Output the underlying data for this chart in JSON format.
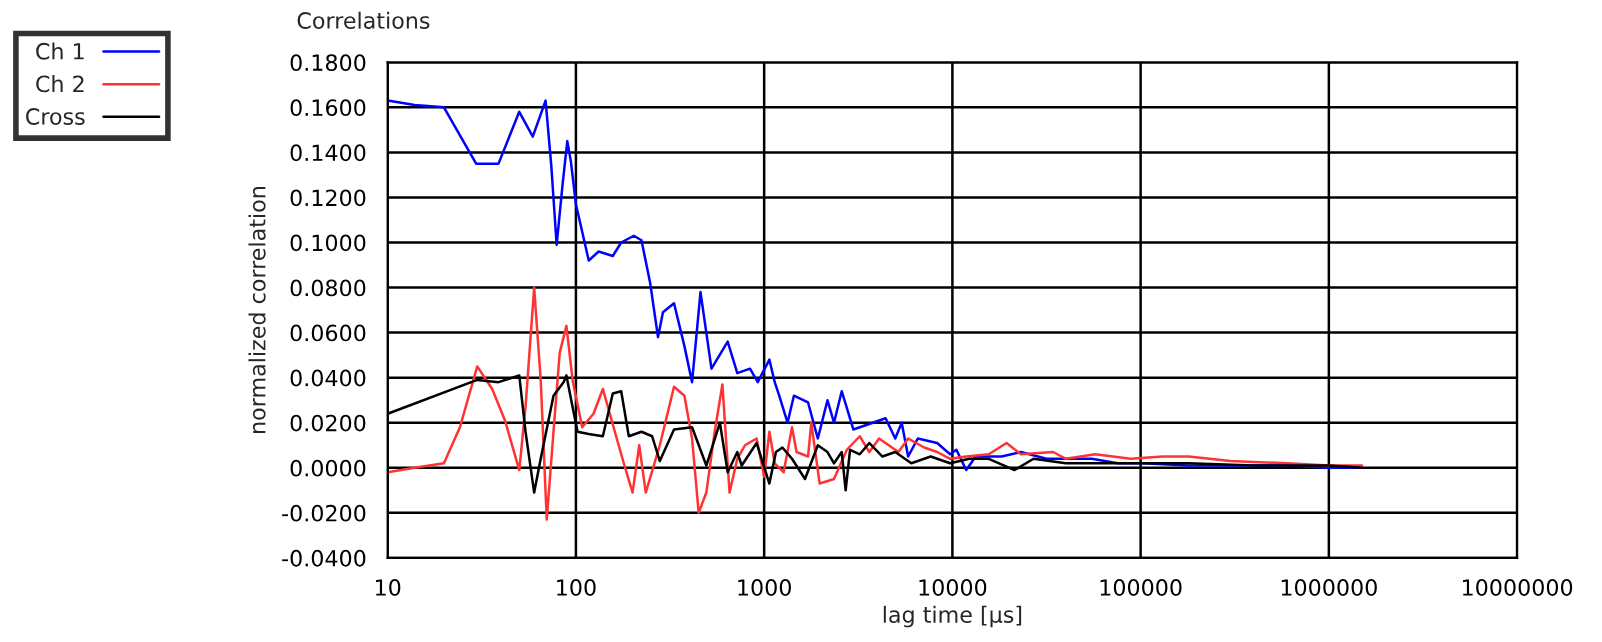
{
  "chart_data": {
    "type": "line",
    "title": "Correlations",
    "xlabel": "lag time [µs]",
    "ylabel": "normalized correlation",
    "log": "x",
    "grid": true,
    "legend": "top left",
    "marker": "none",
    "line_style": "solid",
    "xlim": [
      10,
      10000000
    ],
    "xticks": [
      10,
      100,
      1000,
      10000,
      100000,
      1000000,
      10000000
    ],
    "ylim": [
      -0.04,
      0.18
    ],
    "yticks": [
      {
        "value": -0.04,
        "label": "-0.0400"
      },
      {
        "value": -0.02,
        "label": "-0.0200"
      },
      {
        "value": 0,
        "label": "0.0000"
      },
      {
        "value": 0.02,
        "label": "0.0200"
      },
      {
        "value": 0.04,
        "label": "0.0400"
      },
      {
        "value": 0.06,
        "label": "0.0600"
      },
      {
        "value": 0.08,
        "label": "0.0800"
      },
      {
        "value": 0.1,
        "label": "0.1000"
      },
      {
        "value": 0.12,
        "label": "0.1200"
      },
      {
        "value": 0.14,
        "label": "0.1400"
      },
      {
        "value": 0.16,
        "label": "0.1600"
      },
      {
        "value": 0.18,
        "label": "0.1800"
      }
    ],
    "series": [
      {
        "name": "Ch 1",
        "color": "#0000ff",
        "x": [
          10,
          13.9,
          19.9,
          29.5,
          38.8,
          50,
          59,
          69,
          74,
          79,
          85,
          90,
          94,
          100,
          117,
          132,
          157,
          174,
          203,
          223,
          248,
          273,
          290,
          332,
          377,
          414,
          459,
          525,
          640,
          720,
          841,
          925,
          1066,
          1138,
          1202,
          1331,
          1439,
          1711,
          1928,
          2170,
          2350,
          2583,
          2977,
          3773,
          4418,
          4970,
          5380,
          5820,
          6550,
          8300,
          9720,
          10500,
          11840,
          13300,
          18250,
          23100,
          31600,
          40000,
          55000,
          75500,
          103000,
          178000,
          300000,
          600000,
          1000000,
          1500000
        ],
        "values": [
          0.163,
          0.161,
          0.16,
          0.135,
          0.135,
          0.158,
          0.147,
          0.163,
          0.134,
          0.099,
          0.126,
          0.145,
          0.136,
          0.117,
          0.092,
          0.096,
          0.094,
          0.1,
          0.103,
          0.101,
          0.082,
          0.058,
          0.069,
          0.073,
          0.054,
          0.038,
          0.078,
          0.044,
          0.056,
          0.042,
          0.044,
          0.038,
          0.048,
          0.038,
          0.032,
          0.02,
          0.032,
          0.029,
          0.013,
          0.03,
          0.02,
          0.034,
          0.017,
          0.02,
          0.022,
          0.013,
          0.02,
          0.005,
          0.013,
          0.011,
          0.006,
          0.008,
          -0.001,
          0.005,
          0.005,
          0.007,
          0.004,
          0.004,
          0.004,
          0.002,
          0.002,
          0.001,
          0.001,
          0.001,
          0.0,
          0.0
        ]
      },
      {
        "name": "Ch 2",
        "color": "#ff3333",
        "x": [
          10,
          13.9,
          19.9,
          24.2,
          29.9,
          35.9,
          42,
          50,
          54,
          60,
          65,
          70,
          76,
          82,
          89,
          96,
          108,
          124,
          139,
          161,
          181,
          200,
          217,
          235,
          279,
          332,
          377,
          414,
          449,
          493,
          546,
          600,
          655,
          720,
          791,
          912,
          1000,
          1066,
          1138,
          1270,
          1406,
          1486,
          1711,
          1780,
          1972,
          2350,
          2750,
          3220,
          3620,
          4080,
          5170,
          5820,
          7080,
          8300,
          9720,
          11840,
          15600,
          19400,
          23100,
          34300,
          40000,
          57300,
          88500,
          131000,
          180000,
          300000,
          600000,
          1000000,
          1500000
        ],
        "values": [
          -0.002,
          0.0,
          0.002,
          0.018,
          0.045,
          0.035,
          0.021,
          -0.001,
          0.027,
          0.08,
          0.039,
          -0.023,
          0.016,
          0.051,
          0.063,
          0.039,
          0.018,
          0.024,
          0.035,
          0.016,
          0.001,
          -0.011,
          0.01,
          -0.011,
          0.01,
          0.036,
          0.032,
          0.013,
          -0.02,
          -0.011,
          0.016,
          0.037,
          -0.011,
          0.004,
          0.01,
          0.013,
          -0.004,
          0.016,
          0.002,
          -0.002,
          0.018,
          0.007,
          0.005,
          0.02,
          -0.007,
          -0.005,
          0.008,
          0.014,
          0.007,
          0.013,
          0.007,
          0.013,
          0.009,
          0.007,
          0.004,
          0.005,
          0.006,
          0.011,
          0.006,
          0.007,
          0.004,
          0.006,
          0.004,
          0.005,
          0.005,
          0.003,
          0.002,
          0.001,
          0.001
        ]
      },
      {
        "name": "Cross",
        "color": "#000000",
        "x": [
          10,
          29.9,
          38.8,
          50,
          54,
          60,
          65,
          76,
          86,
          89,
          96,
          102,
          117,
          139,
          157,
          174,
          191,
          223,
          254,
          279,
          332,
          414,
          493,
          582,
          640,
          720,
          760,
          912,
          1066,
          1155,
          1250,
          1406,
          1648,
          1928,
          2170,
          2350,
          2583,
          2710,
          2860,
          3220,
          3620,
          4250,
          4970,
          6050,
          7670,
          9720,
          12300,
          15600,
          21400,
          27000,
          40000,
          64600,
          103000,
          180000,
          400000,
          1000000,
          1500000
        ],
        "values": [
          0.024,
          0.039,
          0.038,
          0.041,
          0.016,
          -0.011,
          0.004,
          0.032,
          0.038,
          0.041,
          0.027,
          0.016,
          0.015,
          0.014,
          0.033,
          0.034,
          0.014,
          0.016,
          0.014,
          0.003,
          0.017,
          0.018,
          0.001,
          0.02,
          -0.002,
          0.007,
          0.001,
          0.011,
          -0.007,
          0.007,
          0.009,
          0.004,
          -0.005,
          0.01,
          0.007,
          0.002,
          0.007,
          -0.01,
          0.008,
          0.006,
          0.011,
          0.005,
          0.007,
          0.002,
          0.005,
          0.002,
          0.004,
          0.004,
          -0.001,
          0.004,
          0.002,
          0.002,
          0.002,
          0.002,
          0.001,
          0.001,
          0.0
        ]
      }
    ]
  }
}
